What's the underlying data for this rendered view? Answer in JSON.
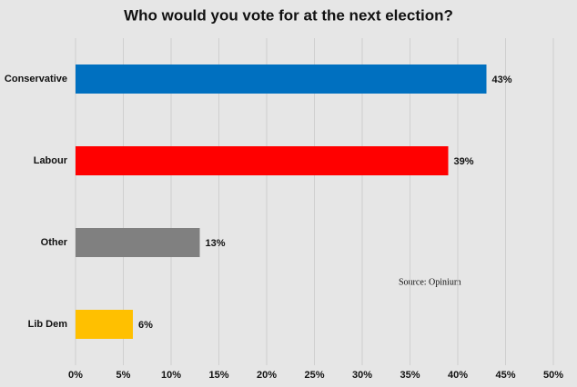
{
  "chart_data": {
    "type": "bar",
    "orientation": "horizontal",
    "title": "Who would you vote for at the next election?",
    "categories": [
      "Conservative",
      "Labour",
      "Other",
      "Lib Dem"
    ],
    "values": [
      43,
      39,
      13,
      6
    ],
    "value_labels": [
      "43%",
      "39%",
      "13%",
      "6%"
    ],
    "colors": [
      "#0070c0",
      "#ff0000",
      "#808080",
      "#ffc000"
    ],
    "xlim": [
      0,
      50
    ],
    "xticks": [
      {
        "value": 0,
        "label": "0%"
      },
      {
        "value": 5,
        "label": "5%"
      },
      {
        "value": 10,
        "label": "10%"
      },
      {
        "value": 15,
        "label": "15%"
      },
      {
        "value": 20,
        "label": "20%"
      },
      {
        "value": 25,
        "label": "25%"
      },
      {
        "value": 30,
        "label": "30%"
      },
      {
        "value": 35,
        "label": "35%"
      },
      {
        "value": 40,
        "label": "40%"
      },
      {
        "value": 45,
        "label": "45%"
      },
      {
        "value": 50,
        "label": "50%"
      }
    ],
    "grid": true,
    "annotation": "Source: Opinium"
  }
}
